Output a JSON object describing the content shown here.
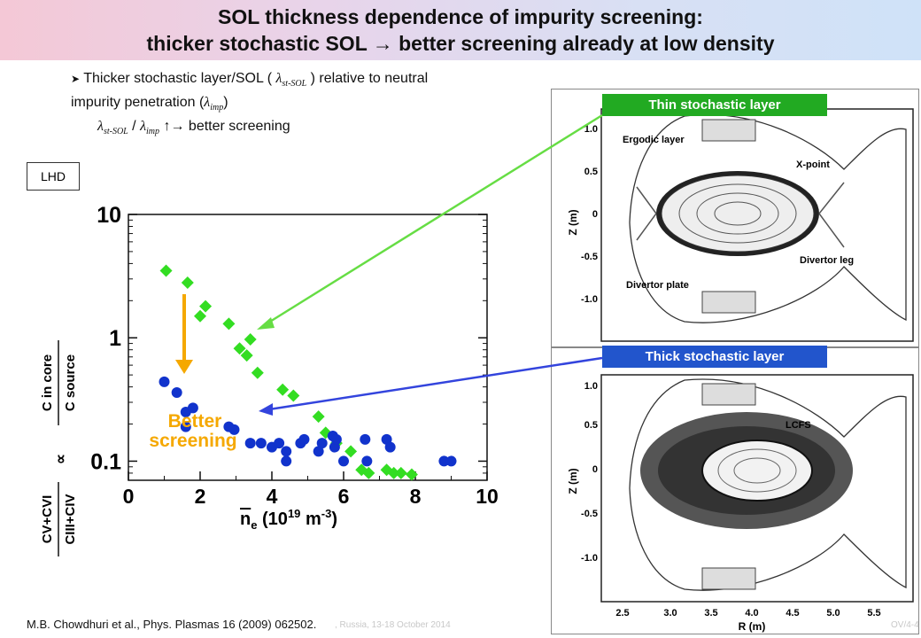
{
  "title": {
    "line1": "SOL thickness dependence of impurity screening:",
    "line2": "thicker stochastic SOL → better screening already at low density"
  },
  "bullet": {
    "text_a": "Thicker stochastic layer/SOL ( ",
    "lambda_st_sol": "st-SOL",
    "text_b": ") relative to neutral",
    "text_c": "impurity penetration (",
    "lambda_imp": "imp",
    "text_d": ")",
    "ratio_arrow": "↑→ better screening"
  },
  "lhd_label": "LHD",
  "annotation": {
    "better_line1": "Better",
    "better_line2": "screening"
  },
  "panels": {
    "thin_label": "Thin stochastic layer",
    "thick_label": "Thick stochastic layer",
    "top": {
      "ergodic": "Ergodic layer",
      "xpoint": "X-point",
      "divertor_leg": "Divertor leg",
      "divertor_plate": "Divertor plate"
    },
    "bottom": {
      "lcfs": "LCFS"
    },
    "zlabel": "Z (m)",
    "rlabel": "R (m)",
    "zticks": [
      "1.0",
      "0.5",
      "0",
      "-0.5",
      "-1.0"
    ],
    "rticks": [
      "2.5",
      "3.0",
      "3.5",
      "4.0",
      "4.5",
      "5.0",
      "5.5"
    ]
  },
  "footer": {
    "reference": "M.B. Chowdhuri et al., Phys. Plasmas 16 (2009) 062502.",
    "faint_mid": ", Russia, 13-18 October 2014",
    "faint_right": "OV/4-4"
  },
  "colors": {
    "green": "#33dd22",
    "blue": "#1133cc",
    "orange": "#f5a800",
    "green_arrow": "#66dd44",
    "blue_arrow": "#3344dd"
  },
  "chart_data": {
    "type": "scatter",
    "xlabel_main": "n",
    "xlabel_sub": "e",
    "xlabel_rest": " (10",
    "xlabel_sup": "19",
    "xlabel_unit": " m",
    "xlabel_sup2": "-3",
    "xlabel_close": ")",
    "ylabel": {
      "top_num": "C in core",
      "top_den": "C source",
      "prop": "∝",
      "bot_num": "CV+CVI",
      "bot_den": "CIII+CIV"
    },
    "xlim": [
      0,
      10
    ],
    "ylim": [
      0.07,
      10
    ],
    "yscale": "log",
    "xticks": [
      "0",
      "2",
      "4",
      "6",
      "8",
      "10"
    ],
    "yticks": [
      "10",
      "1",
      "0.1"
    ],
    "series": [
      {
        "marker": "diamond",
        "color": "#33dd22",
        "x": [
          1.05,
          1.65,
          2.0,
          2.15,
          2.8,
          3.1,
          3.3,
          3.4,
          3.6,
          4.3,
          4.6,
          5.3,
          5.5,
          5.8,
          6.2,
          6.5,
          6.7,
          7.2,
          7.4,
          7.6,
          7.9
        ],
        "y": [
          3.5,
          2.8,
          1.5,
          1.8,
          1.3,
          0.82,
          0.72,
          0.97,
          0.52,
          0.38,
          0.34,
          0.23,
          0.17,
          0.14,
          0.12,
          0.085,
          0.08,
          0.085,
          0.08,
          0.08,
          0.078
        ]
      },
      {
        "marker": "circle",
        "color": "#1133cc",
        "x": [
          1.0,
          1.35,
          1.6,
          1.6,
          1.8,
          2.8,
          2.95,
          3.4,
          3.7,
          4.0,
          4.2,
          4.4,
          4.4,
          4.8,
          4.9,
          5.3,
          5.4,
          5.7,
          5.75,
          5.8,
          6.0,
          6.6,
          6.65,
          7.2,
          7.3,
          8.8,
          9.0
        ],
        "y": [
          0.44,
          0.36,
          0.25,
          0.19,
          0.27,
          0.19,
          0.18,
          0.14,
          0.14,
          0.13,
          0.14,
          0.12,
          0.1,
          0.14,
          0.15,
          0.12,
          0.14,
          0.16,
          0.13,
          0.15,
          0.1,
          0.15,
          0.1,
          0.15,
          0.13,
          0.1,
          0.1
        ]
      }
    ]
  }
}
